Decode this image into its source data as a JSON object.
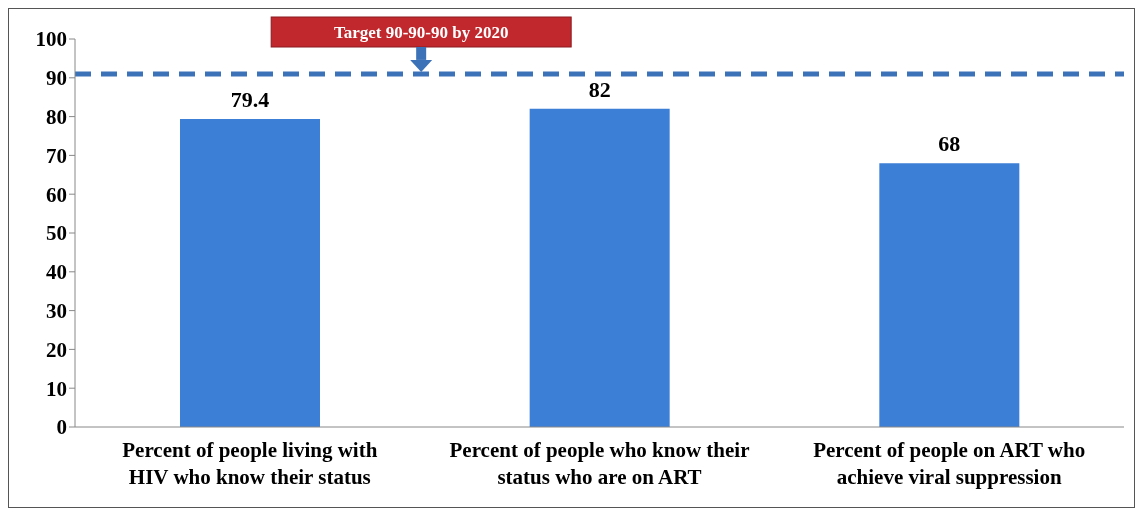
{
  "chart_data": {
    "type": "bar",
    "categories": [
      "Percent of people living with HIV who know their status",
      "Percent of people who know their status who are on ART",
      "Percent of people on ART who achieve viral suppression"
    ],
    "values": [
      79.4,
      82,
      68
    ],
    "color": "#3c7fd6",
    "ylim": [
      0,
      100
    ],
    "yticks": [
      0,
      10,
      20,
      30,
      40,
      50,
      60,
      70,
      80,
      90,
      100
    ],
    "grid": false,
    "legend": false,
    "data_labels": true,
    "ref_lines": [
      {
        "axis": "y",
        "value": 91,
        "label": "Target 90-90-90 by 2020",
        "color": "#3c72b8",
        "line_style": "dashed"
      }
    ]
  }
}
